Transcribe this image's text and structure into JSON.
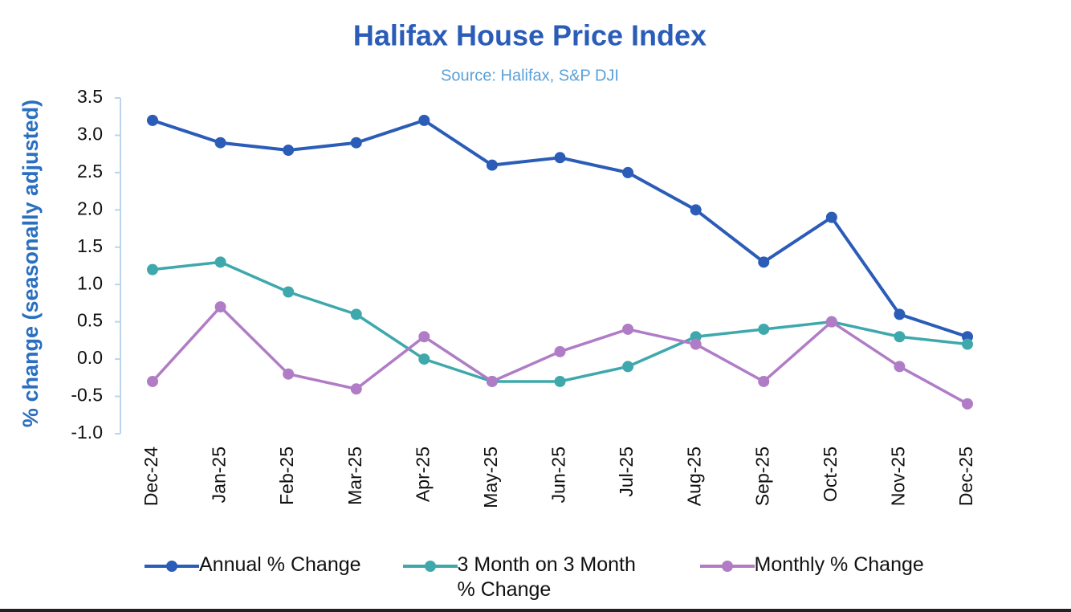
{
  "chart_data": {
    "type": "line",
    "title": "Halifax House Price Index",
    "subtitle": "Source: Halifax, S&P DJI",
    "y_label": "% change (seasonally adjusted)",
    "categories": [
      "Dec-24",
      "Jan-25",
      "Feb-25",
      "Mar-25",
      "Apr-25",
      "May-25",
      "Jun-25",
      "Jul-25",
      "Aug-25",
      "Sep-25",
      "Oct-25",
      "Nov-25",
      "Dec-25"
    ],
    "series": [
      {
        "name": "Annual % Change",
        "color": "#2a5cb8",
        "values": [
          3.2,
          2.9,
          2.8,
          2.9,
          3.2,
          2.6,
          2.7,
          2.5,
          2.0,
          1.3,
          1.9,
          0.6,
          0.3
        ]
      },
      {
        "name": "3 Month on 3 Month % Change",
        "color": "#3ea8ac",
        "values": [
          1.2,
          1.3,
          0.9,
          0.6,
          0.0,
          -0.3,
          -0.3,
          -0.1,
          0.3,
          0.4,
          0.5,
          0.3,
          0.2
        ]
      },
      {
        "name": "Monthly % Change",
        "color": "#b07cc6",
        "values": [
          -0.3,
          0.7,
          -0.2,
          -0.4,
          0.3,
          -0.3,
          0.1,
          0.4,
          0.2,
          -0.3,
          0.5,
          -0.1,
          -0.6
        ]
      }
    ],
    "ylim": [
      -1.0,
      3.5
    ],
    "yticks": [
      {
        "value": 3.5,
        "label": "3.5"
      },
      {
        "value": 3.0,
        "label": "3.0"
      },
      {
        "value": 2.5,
        "label": "2.5"
      },
      {
        "value": 2.0,
        "label": "2.0"
      },
      {
        "value": 1.5,
        "label": "1.5"
      },
      {
        "value": 1.0,
        "label": "1.0"
      },
      {
        "value": 0.5,
        "label": "0.5"
      },
      {
        "value": 0.0,
        "label": "0.0"
      },
      {
        "value": -0.5,
        "label": "-0.5"
      },
      {
        "value": -1.0,
        "label": "-1.0"
      }
    ],
    "grid": false
  }
}
